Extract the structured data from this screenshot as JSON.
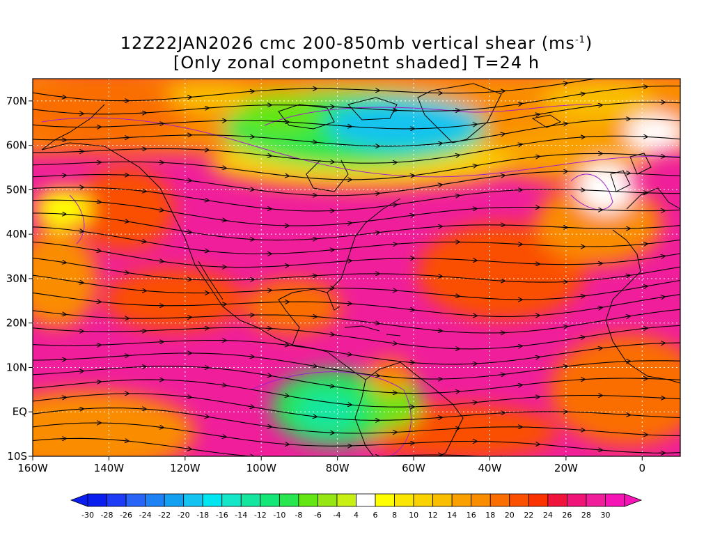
{
  "header": {
    "title_line1": "12Z22JAN2026 cmc 200-850mb vertical shear (ms",
    "title_line1_sup": "-1",
    "title_line1_end": ")",
    "title_line2": "[Only zonal componetnt shaded] T=24 h"
  },
  "map": {
    "lon_range": [
      -160,
      10
    ],
    "lat_range": [
      -10,
      75
    ],
    "lon_ticks": [
      {
        "value": -160,
        "label": "160W"
      },
      {
        "value": -140,
        "label": "140W"
      },
      {
        "value": -120,
        "label": "120W"
      },
      {
        "value": -100,
        "label": "100W"
      },
      {
        "value": -80,
        "label": "80W"
      },
      {
        "value": -60,
        "label": "60W"
      },
      {
        "value": -40,
        "label": "40W"
      },
      {
        "value": -20,
        "label": "20W"
      },
      {
        "value": 0,
        "label": "0"
      }
    ],
    "lat_ticks": [
      {
        "value": 70,
        "label": "70N"
      },
      {
        "value": 60,
        "label": "60N"
      },
      {
        "value": 50,
        "label": "50N"
      },
      {
        "value": 40,
        "label": "40N"
      },
      {
        "value": 30,
        "label": "30N"
      },
      {
        "value": 20,
        "label": "20N"
      },
      {
        "value": 10,
        "label": "10N"
      },
      {
        "value": 0,
        "label": "EQ"
      },
      {
        "value": -10,
        "label": "10S"
      }
    ]
  },
  "colorbar": {
    "labels": [
      "-30",
      "-28",
      "-26",
      "-24",
      "-22",
      "-20",
      "-18",
      "-16",
      "-14",
      "-12",
      "-10",
      "-8",
      "-6",
      "-4",
      "4",
      "6",
      "8",
      "10",
      "12",
      "14",
      "16",
      "18",
      "20",
      "22",
      "24",
      "26",
      "28",
      "30"
    ],
    "colors": [
      "#0a1ef0",
      "#1e3cf5",
      "#2864f5",
      "#1e82f5",
      "#14a0f0",
      "#14c3f0",
      "#00e6f0",
      "#14e6c8",
      "#14e6a0",
      "#14e678",
      "#28e650",
      "#64e614",
      "#96e614",
      "#c8f014",
      "#ffffff",
      "#ffff00",
      "#fae600",
      "#fad200",
      "#fabe00",
      "#faa000",
      "#fa8c00",
      "#fa6e00",
      "#fa5000",
      "#fa3200",
      "#f0143c",
      "#f01478",
      "#f01e9b",
      "#f514b4"
    ],
    "under_color": "#0a1ef0",
    "over_color": "#f514b4"
  }
}
